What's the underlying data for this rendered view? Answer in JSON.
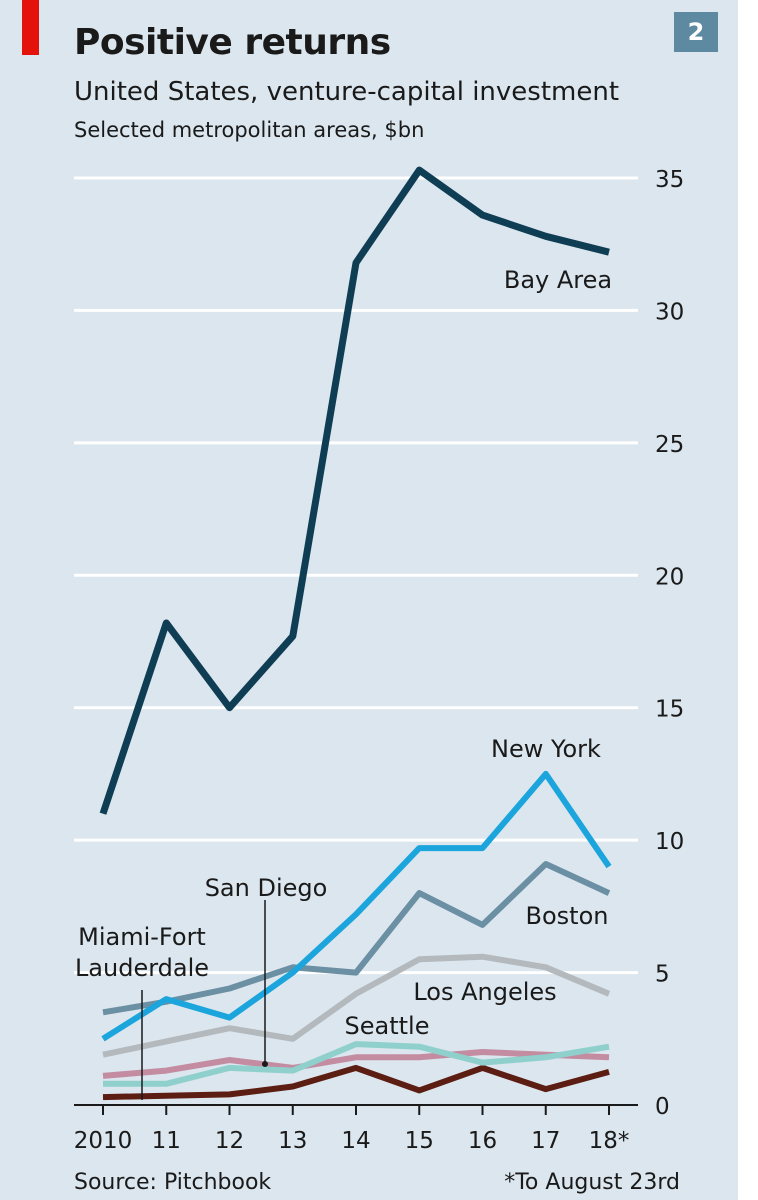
{
  "header": {
    "title": "Positive returns",
    "subtitle": "United States, venture-capital investment",
    "unit": "Selected metropolitan areas, $bn",
    "badge": "2"
  },
  "footer": {
    "source": "Source: Pitchbook",
    "footnote": "*To August 23rd"
  },
  "colors": {
    "background": "#dbe6ee",
    "accent_red": "#e3120b",
    "badge": "#5d8aa1"
  },
  "chart_data": {
    "type": "line",
    "title": "Positive returns",
    "subtitle": "United States, venture-capital investment",
    "ylabel": "Selected metropolitan areas, $bn",
    "xlabel": "",
    "x": [
      "2010",
      "11",
      "12",
      "13",
      "14",
      "15",
      "16",
      "17",
      "18*"
    ],
    "ylim": [
      0,
      35
    ],
    "yticks": [
      0,
      5,
      10,
      15,
      20,
      25,
      30,
      35
    ],
    "grid": true,
    "series": [
      {
        "name": "Bay Area",
        "color": "#0f3d54",
        "values": [
          11.0,
          18.2,
          15.0,
          17.7,
          31.8,
          35.3,
          33.6,
          32.8,
          32.2
        ]
      },
      {
        "name": "New York",
        "color": "#1ba5dc",
        "values": [
          2.5,
          4.0,
          3.3,
          5.0,
          7.2,
          9.7,
          9.7,
          12.5,
          9.0
        ]
      },
      {
        "name": "Boston",
        "color": "#6b8fa3",
        "values": [
          3.5,
          3.9,
          4.4,
          5.2,
          5.0,
          8.0,
          6.8,
          9.1,
          8.0
        ]
      },
      {
        "name": "Los Angeles",
        "color": "#b4b9bd",
        "values": [
          1.9,
          2.4,
          2.9,
          2.5,
          4.2,
          5.5,
          5.6,
          5.2,
          4.2
        ]
      },
      {
        "name": "Seattle",
        "color": "#8fd0cd",
        "values": [
          0.8,
          0.8,
          1.4,
          1.3,
          2.3,
          2.2,
          1.6,
          1.8,
          2.2
        ]
      },
      {
        "name": "San Diego",
        "color": "#c48ca1",
        "values": [
          1.1,
          1.3,
          1.7,
          1.4,
          1.8,
          1.8,
          2.0,
          1.9,
          1.8
        ]
      },
      {
        "name": "Miami-Fort Lauderdale",
        "color": "#5c1d12",
        "values": [
          0.3,
          0.35,
          0.4,
          0.7,
          1.4,
          0.55,
          1.4,
          0.6,
          1.25
        ]
      }
    ]
  }
}
